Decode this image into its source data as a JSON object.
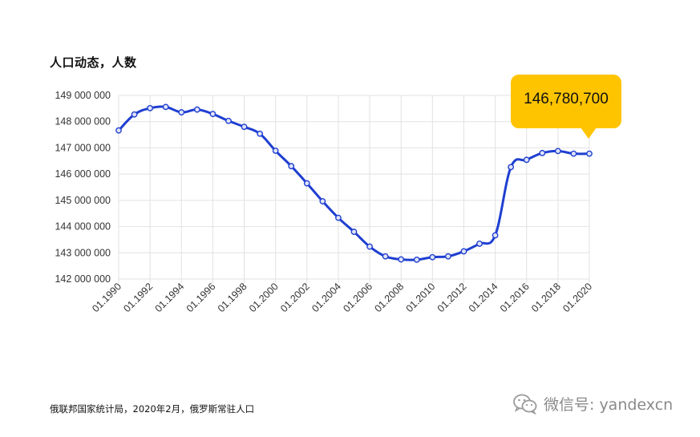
{
  "title": "人口动态，人数",
  "source": "俄联邦国家统计局，2020年2月，俄罗斯常驻人口",
  "tooltip": "146,780,700",
  "watermark": {
    "icon": "wechat-icon",
    "text": "微信号: yandexcn"
  },
  "colors": {
    "line": "#1f3fd1",
    "tooltip": "#ffc400",
    "grid": "#e2e2e2"
  },
  "chart_data": {
    "type": "line",
    "title": "人口动态，人数",
    "xlabel": "",
    "ylabel": "",
    "x": [
      1990,
      1991,
      1992,
      1993,
      1994,
      1995,
      1996,
      1997,
      1998,
      1999,
      2000,
      2001,
      2002,
      2003,
      2004,
      2005,
      2006,
      2007,
      2008,
      2009,
      2010,
      2011,
      2012,
      2013,
      2014,
      2015,
      2016,
      2017,
      2018,
      2019,
      2020
    ],
    "values": [
      147665081,
      148273746,
      148514692,
      148561694,
      148355867,
      148459937,
      148291638,
      148028613,
      147802133,
      147539426,
      146890128,
      146303611,
      145649334,
      144963650,
      144333586,
      143801046,
      143236572,
      142862692,
      142747535,
      142737196,
      142833502,
      142865433,
      143056383,
      143347059,
      143666931,
      146267288,
      146544710,
      146804372,
      146880432,
      146780720,
      146780700
    ],
    "ylim": [
      142000000,
      149000000
    ],
    "y_ticks": [
      "142 000 000",
      "143 000 000",
      "144 000 000",
      "145 000 000",
      "146 000 000",
      "147 000 000",
      "148 000 000",
      "149 000 000"
    ],
    "x_ticks": [
      "01.1990",
      "01.1992",
      "01.1994",
      "01.1996",
      "01.1998",
      "01.2000",
      "01.2002",
      "01.2004",
      "01.2006",
      "01.2008",
      "01.2010",
      "01.2012",
      "01.2014",
      "01.2016",
      "01.2018",
      "01.2020"
    ],
    "grid": true,
    "highlight": {
      "x": 2020,
      "label": "146,780,700"
    }
  }
}
